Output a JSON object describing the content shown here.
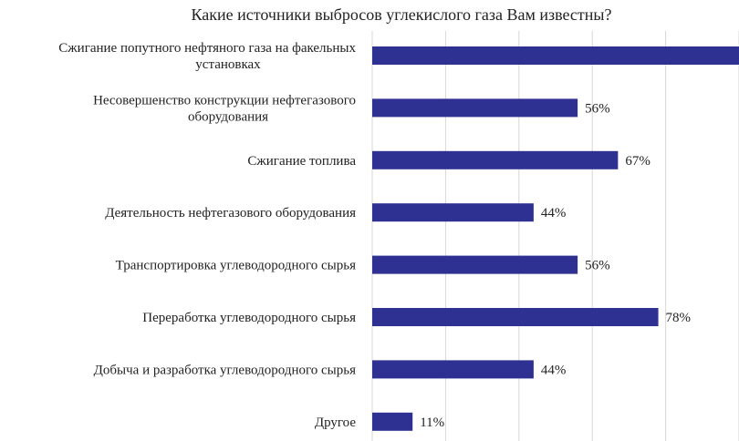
{
  "chart_data": {
    "type": "bar",
    "orientation": "horizontal",
    "title": "Какие источники выбросов углекислого газа Вам известны?",
    "xlabel": "",
    "ylabel": "",
    "xlim": [
      0,
      100
    ],
    "grid": true,
    "colors": {
      "bar": "#2e3192",
      "grid": "#d6d6d6"
    },
    "categories": [
      [
        "Сжигание попутного нефтяного газа на факельных",
        "установках"
      ],
      [
        "Несовершенство конструкции нефтегазового",
        "оборудования"
      ],
      [
        "Сжигание топлива"
      ],
      [
        "Деятельность нефтегазового оборудования"
      ],
      [
        "Транспортировка углеводородного сырья"
      ],
      [
        "Переработка углеводородного сырья"
      ],
      [
        "Добыча и разработка углеводородного сырья"
      ],
      [
        "Другое"
      ]
    ],
    "values": [
      100,
      56,
      67,
      44,
      56,
      78,
      44,
      11
    ],
    "data_labels": [
      "",
      "56%",
      "67%",
      "44%",
      "56%",
      "78%",
      "44%",
      "11%"
    ]
  }
}
